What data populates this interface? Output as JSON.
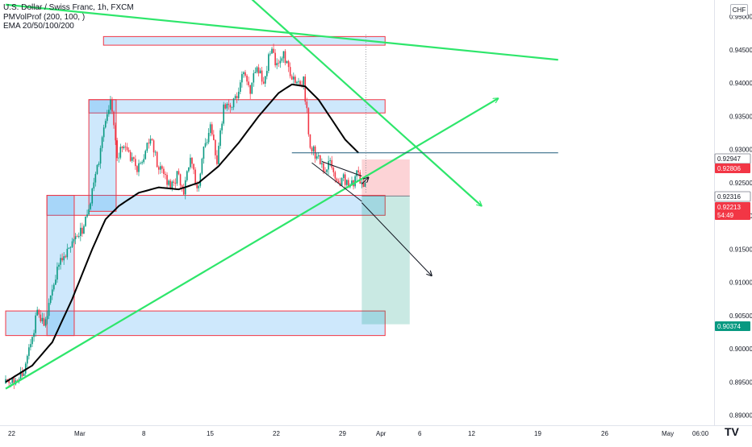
{
  "legend": {
    "symbol": "U.S. Dollar / Swiss Franc, 1h, FXCM",
    "indicator1": "PMVolProf (200, 100, )",
    "indicator2": "EMA 20/50/100/200"
  },
  "currency": "CHF",
  "branding": {
    "logo_text": "TV"
  },
  "chart_data": {
    "type": "candlestick",
    "x_tick_labels": [
      "22",
      "Mar",
      "8",
      "15",
      "22",
      "29",
      "Apr",
      "6",
      "12",
      "19",
      "26",
      "May",
      "06:00"
    ],
    "y_tick_labels": [
      "0.95000",
      "0.94500",
      "0.94000",
      "0.93500",
      "0.93000",
      "0.92500",
      "0.92000",
      "0.91500",
      "0.91000",
      "0.90500",
      "0.90000",
      "0.89500",
      "0.89000"
    ],
    "ylim": [
      0.8885,
      0.9525
    ],
    "grid": false,
    "price_tags": [
      {
        "value": "0.92947",
        "bg": "#ffffff",
        "fg": "#131722"
      },
      {
        "value": "0.92806",
        "bg": "#f23645",
        "fg": "#ffffff"
      },
      {
        "value": "0.92316",
        "bg": "#ffffff",
        "fg": "#131722"
      },
      {
        "value": "0.92213",
        "bg": "#f23645",
        "fg": "#ffffff",
        "sub": "54:49"
      },
      {
        "value": "0.90374",
        "bg": "#089981",
        "fg": "#ffffff"
      }
    ],
    "path_keypoints": [
      {
        "d": 0,
        "p": 0.8948
      },
      {
        "d": 3,
        "p": 0.896
      },
      {
        "d": 5,
        "p": 0.9055
      },
      {
        "d": 6,
        "p": 0.9035
      },
      {
        "d": 8,
        "p": 0.912
      },
      {
        "d": 10,
        "p": 0.916
      },
      {
        "d": 12,
        "p": 0.918
      },
      {
        "d": 14,
        "p": 0.927
      },
      {
        "d": 15,
        "p": 0.933
      },
      {
        "d": 16,
        "p": 0.937
      },
      {
        "d": 17,
        "p": 0.929
      },
      {
        "d": 18,
        "p": 0.931
      },
      {
        "d": 20,
        "p": 0.927
      },
      {
        "d": 22,
        "p": 0.9315
      },
      {
        "d": 23,
        "p": 0.928
      },
      {
        "d": 25,
        "p": 0.9245
      },
      {
        "d": 26,
        "p": 0.926
      },
      {
        "d": 27,
        "p": 0.924
      },
      {
        "d": 28,
        "p": 0.929
      },
      {
        "d": 29,
        "p": 0.9235
      },
      {
        "d": 30,
        "p": 0.93
      },
      {
        "d": 31,
        "p": 0.933
      },
      {
        "d": 32,
        "p": 0.9285
      },
      {
        "d": 33,
        "p": 0.936
      },
      {
        "d": 35,
        "p": 0.9375
      },
      {
        "d": 36,
        "p": 0.942
      },
      {
        "d": 37,
        "p": 0.9385
      },
      {
        "d": 38,
        "p": 0.943
      },
      {
        "d": 39,
        "p": 0.94
      },
      {
        "d": 40,
        "p": 0.945
      },
      {
        "d": 41,
        "p": 0.9425
      },
      {
        "d": 42,
        "p": 0.9442
      },
      {
        "d": 43,
        "p": 0.9415
      },
      {
        "d": 44,
        "p": 0.9395
      },
      {
        "d": 45,
        "p": 0.9405
      },
      {
        "d": 46,
        "p": 0.9305
      },
      {
        "d": 47,
        "p": 0.929
      },
      {
        "d": 48,
        "p": 0.927
      },
      {
        "d": 49,
        "p": 0.9285
      },
      {
        "d": 50,
        "p": 0.9245
      },
      {
        "d": 51,
        "p": 0.9255
      },
      {
        "d": 52,
        "p": 0.924
      },
      {
        "d": 53,
        "p": 0.9265
      },
      {
        "d": 54,
        "p": 0.9245
      }
    ],
    "ema_keypoints": [
      {
        "d": 0,
        "p": 0.895
      },
      {
        "d": 4,
        "p": 0.8975
      },
      {
        "d": 7,
        "p": 0.901
      },
      {
        "d": 10,
        "p": 0.9075
      },
      {
        "d": 13,
        "p": 0.915
      },
      {
        "d": 15,
        "p": 0.9195
      },
      {
        "d": 17,
        "p": 0.9215
      },
      {
        "d": 20,
        "p": 0.9235
      },
      {
        "d": 23,
        "p": 0.9243
      },
      {
        "d": 26,
        "p": 0.924
      },
      {
        "d": 29,
        "p": 0.925
      },
      {
        "d": 32,
        "p": 0.9275
      },
      {
        "d": 35,
        "p": 0.931
      },
      {
        "d": 38,
        "p": 0.935
      },
      {
        "d": 41,
        "p": 0.9385
      },
      {
        "d": 43,
        "p": 0.9398
      },
      {
        "d": 45,
        "p": 0.9395
      },
      {
        "d": 47,
        "p": 0.9375
      },
      {
        "d": 49,
        "p": 0.9345
      },
      {
        "d": 51,
        "p": 0.9315
      },
      {
        "d": 53,
        "p": 0.9295
      }
    ],
    "zones": [
      {
        "d0": 14.7,
        "d1": 57.0,
        "p0": 0.9457,
        "p1": 0.947
      },
      {
        "d0": 12.5,
        "d1": 57.0,
        "p0": 0.9355,
        "p1": 0.9375
      },
      {
        "d0": 6.2,
        "d1": 57.0,
        "p0": 0.9201,
        "p1": 0.9231
      },
      {
        "d0": 0.0,
        "d1": 57.0,
        "p0": 0.902,
        "p1": 0.9057
      },
      {
        "d0": 12.5,
        "d1": 16.6,
        "p0": 0.9207,
        "p1": 0.9375
      },
      {
        "d0": 6.2,
        "d1": 10.3,
        "p0": 0.902,
        "p1": 0.9231
      }
    ],
    "position": {
      "d0": 53.5,
      "d1": 60.7,
      "entry": 0.923,
      "stop": 0.9285,
      "target": 0.9037
    },
    "trend_lines": [
      {
        "kind": "green",
        "d0": 0,
        "p0": 0.894,
        "d1": 74.0,
        "p1": 0.9377,
        "arrow": true
      },
      {
        "kind": "green",
        "d0": 33,
        "p0": 0.9562,
        "d1": 71.5,
        "p1": 0.9215,
        "arrow": true
      },
      {
        "kind": "green",
        "d0": 0,
        "p0": 0.9518,
        "d1": 83.0,
        "p1": 0.9435,
        "arrow": false
      },
      {
        "kind": "blue",
        "d0": 43,
        "p0": 0.9295,
        "d1": 83.0,
        "p1": 0.9295,
        "arrow": false
      },
      {
        "kind": "black",
        "d0": 47.5,
        "p0": 0.9282,
        "d1": 53.5,
        "p1": 0.926,
        "arrow": false
      },
      {
        "kind": "black",
        "d0": 46,
        "p0": 0.928,
        "d1": 53.5,
        "p1": 0.9222,
        "arrow": false
      },
      {
        "kind": "black",
        "d0": 53.5,
        "p0": 0.922,
        "d1": 64.0,
        "p1": 0.911,
        "arrow": true
      },
      {
        "kind": "black",
        "d0": 53.5,
        "p0": 0.9248,
        "d1": 54.5,
        "p1": 0.9258,
        "arrow": true
      }
    ]
  }
}
